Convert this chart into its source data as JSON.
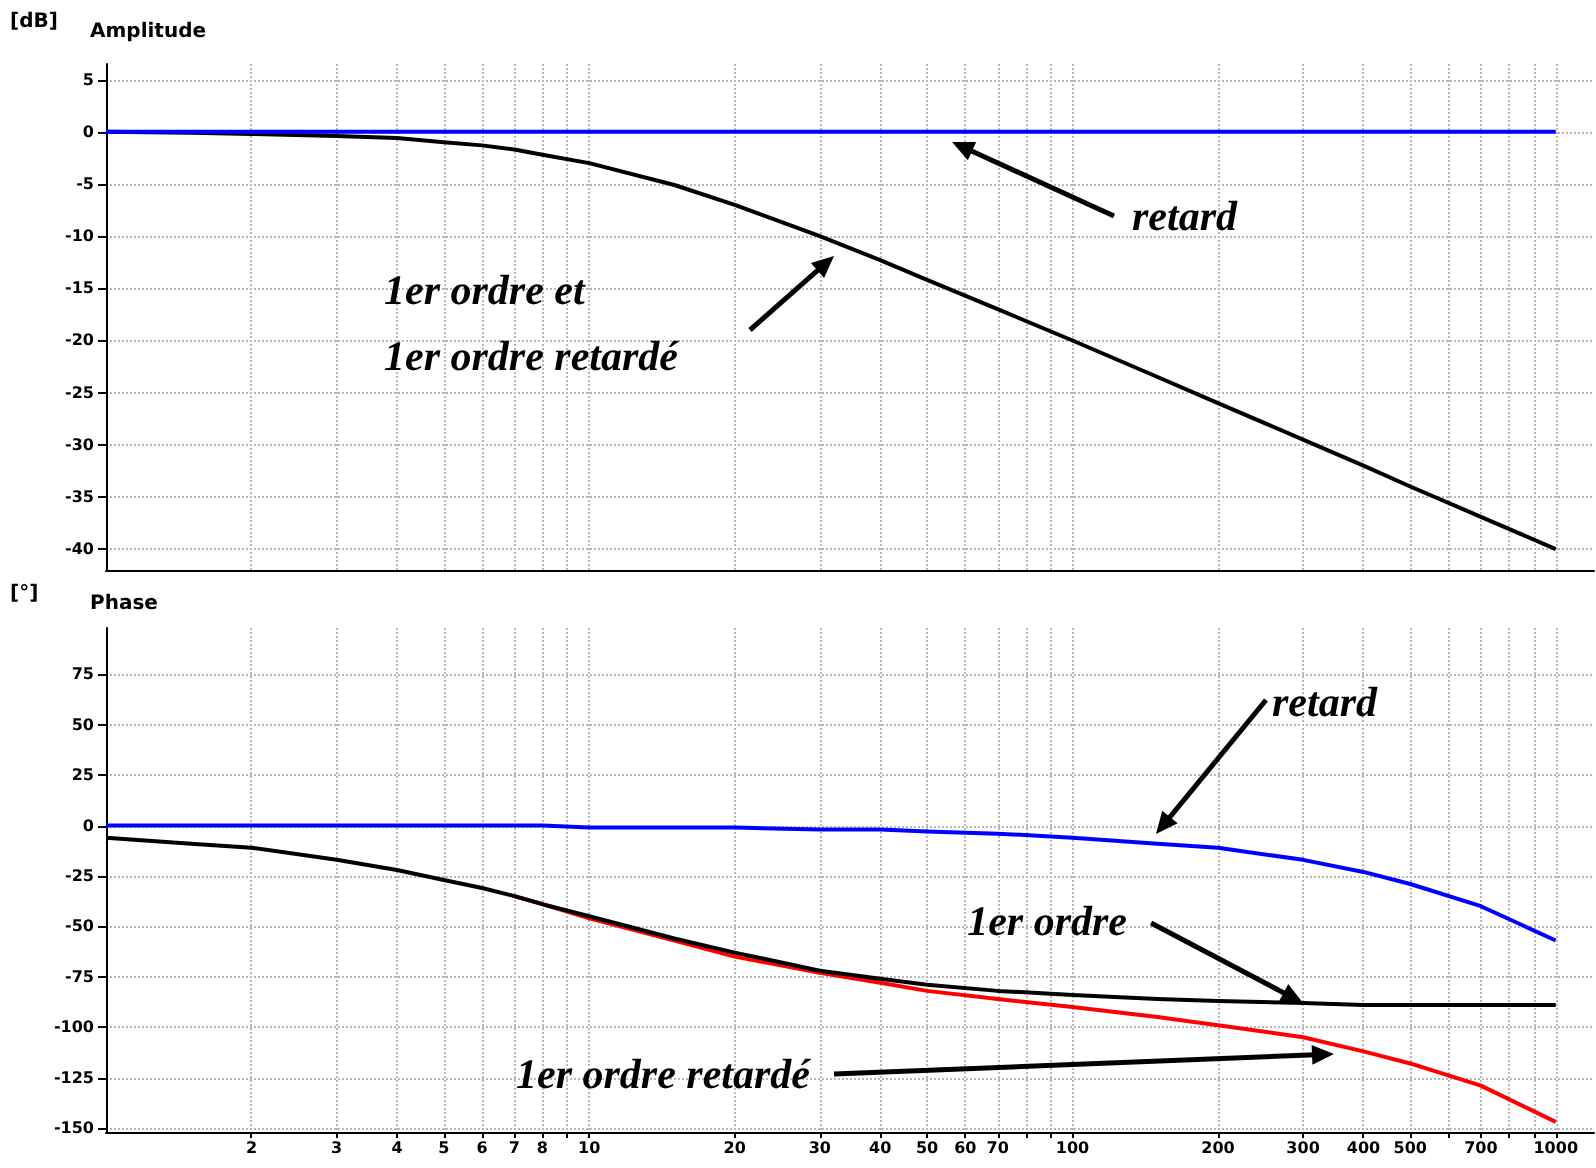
{
  "chart_data": [
    {
      "type": "line",
      "title": "Amplitude",
      "ylabel": "[dB]",
      "x": [
        1,
        1.5,
        2,
        3,
        4,
        5,
        6,
        7,
        8,
        10,
        15,
        20,
        30,
        40,
        50,
        70,
        100,
        150,
        200,
        300,
        400,
        500,
        700,
        1000
      ],
      "series": [
        {
          "color": "#000000",
          "values": [
            0,
            -0.1,
            -0.2,
            -0.4,
            -0.6,
            -1,
            -1.3,
            -1.7,
            -2.2,
            -3,
            -5.1,
            -7,
            -10,
            -12.3,
            -14.2,
            -17,
            -20,
            -23.5,
            -26,
            -29.5,
            -32,
            -34,
            -36.9,
            -40
          ]
        },
        {
          "color": "#0000ff",
          "values": [
            0,
            0,
            0,
            0,
            0,
            0,
            0,
            0,
            0,
            0,
            0,
            0,
            0,
            0,
            0,
            0,
            0,
            0,
            0,
            0,
            0,
            0,
            0,
            0
          ]
        }
      ],
      "annotations": [
        "retard",
        "1er ordre et\n1er ordre retardé"
      ],
      "log": "x",
      "xlim": [
        1,
        1200
      ],
      "ylim": [
        -42,
        6.5
      ],
      "xticks": [
        2,
        3,
        4,
        5,
        6,
        7,
        8,
        {
          "value": 9,
          "label": null
        },
        10,
        20,
        30,
        40,
        50,
        60,
        70,
        {
          "value": 80,
          "label": null
        },
        {
          "value": 90,
          "label": null
        },
        100,
        200,
        300,
        400,
        500,
        {
          "value": 600,
          "label": null
        },
        700,
        {
          "value": 800,
          "label": null
        },
        {
          "value": 900,
          "label": null
        },
        1000
      ],
      "yticks": [
        5,
        0,
        -5,
        -10,
        -15,
        -20,
        -25,
        -30,
        -35,
        -40
      ],
      "grid": true,
      "tick_labels": "y",
      "marker": "none",
      "line_style": "solid"
    },
    {
      "type": "line",
      "title": "Phase",
      "ylabel": "[°]",
      "x": [
        1,
        1.5,
        2,
        3,
        4,
        5,
        6,
        7,
        8,
        10,
        15,
        20,
        30,
        40,
        50,
        70,
        100,
        150,
        200,
        300,
        400,
        500,
        700,
        1000
      ],
      "series": [
        {
          "color": "#ff0000",
          "values": [
            null,
            null,
            null,
            null,
            null,
            null,
            null,
            -35,
            -39,
            -46,
            -57,
            -65,
            -73,
            -78,
            -82,
            -86,
            -90,
            -95,
            -99,
            -105,
            -112,
            -118,
            -129,
            -147
          ]
        },
        {
          "color": "#000000",
          "values": [
            -6,
            -9,
            -11,
            -17,
            -22,
            -27,
            -31,
            -35,
            -39,
            -45,
            -56,
            -63,
            -72,
            -76,
            -79,
            -82,
            -84,
            -86,
            -87,
            -88,
            -89,
            -89,
            -89,
            -89
          ]
        },
        {
          "color": "#0000ff",
          "values": [
            0,
            0,
            0,
            0,
            0,
            0,
            0,
            0,
            0,
            -1,
            -1,
            -1,
            -2,
            -2,
            -3,
            -4,
            -6,
            -9,
            -11,
            -17,
            -23,
            -29,
            -40,
            -57
          ]
        }
      ],
      "annotations": [
        "retard",
        {
          "text": "1er ordre",
          "x": 300,
          "y": -88
        },
        "1er ordre retardé"
      ],
      "log": "x",
      "xlim": [
        1,
        1200
      ],
      "ylim": [
        -152,
        98
      ],
      "xticks": [
        2,
        3,
        4,
        5,
        6,
        7,
        8,
        {
          "value": 9,
          "label": null
        },
        10,
        20,
        30,
        40,
        50,
        60,
        70,
        {
          "value": 80,
          "label": null
        },
        {
          "value": 90,
          "label": null
        },
        100,
        200,
        300,
        400,
        500,
        {
          "value": 600,
          "label": null
        },
        700,
        {
          "value": 800,
          "label": null
        },
        {
          "value": 900,
          "label": null
        },
        1000
      ],
      "yticks": [
        75,
        50,
        25,
        0,
        -25,
        -50,
        -75,
        -100,
        -125,
        -150
      ],
      "grid": true,
      "marker": "none",
      "line_style": "solid"
    }
  ]
}
